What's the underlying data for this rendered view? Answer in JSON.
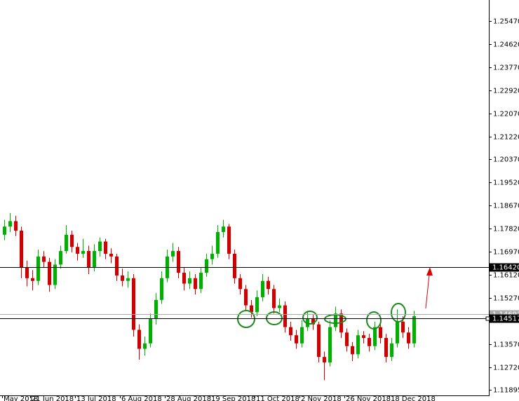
{
  "chart_data": {
    "type": "candlestick",
    "categories": [
      "May 2018",
      null,
      null,
      null,
      null,
      "21 Jun 2018",
      null,
      null,
      null,
      null,
      null,
      null,
      null,
      "13 Jul 2018",
      null,
      null,
      null,
      null,
      null,
      null,
      null,
      "6 Aug 2018",
      null,
      null,
      null,
      null,
      null,
      null,
      null,
      "28 Aug 2018",
      null,
      null,
      null,
      null,
      null,
      null,
      null,
      "19 Sep 2018",
      null,
      null,
      null,
      null,
      null,
      null,
      null,
      "11 Oct 2018",
      null,
      null,
      null,
      null,
      null,
      null,
      null,
      "2 Nov 2018",
      null,
      null,
      null,
      null,
      null,
      null,
      null,
      "26 Nov 2018",
      null,
      null,
      null,
      null,
      null,
      null,
      null,
      "18 Dec 2018",
      null,
      null,
      null,
      null
    ],
    "ohlc": [
      [
        1.176,
        1.1815,
        1.174,
        1.179
      ],
      [
        1.179,
        1.184,
        1.177,
        1.181
      ],
      [
        1.181,
        1.183,
        1.1755,
        1.1775
      ],
      [
        1.1775,
        1.179,
        1.16,
        1.164
      ],
      [
        1.164,
        1.1665,
        1.157,
        1.16
      ],
      [
        1.16,
        1.163,
        1.1555,
        1.159
      ],
      [
        1.159,
        1.1705,
        1.1575,
        1.168
      ],
      [
        1.168,
        1.17,
        1.164,
        1.166
      ],
      [
        1.166,
        1.1675,
        1.155,
        1.1575
      ],
      [
        1.1575,
        1.167,
        1.156,
        1.165
      ],
      [
        1.165,
        1.172,
        1.1635,
        1.17
      ],
      [
        1.17,
        1.1795,
        1.169,
        1.176
      ],
      [
        1.176,
        1.1775,
        1.1695,
        1.1715
      ],
      [
        1.1715,
        1.173,
        1.1665,
        1.169
      ],
      [
        1.169,
        1.1745,
        1.1675,
        1.17
      ],
      [
        1.17,
        1.172,
        1.1615,
        1.164
      ],
      [
        1.164,
        1.1725,
        1.1625,
        1.17
      ],
      [
        1.17,
        1.175,
        1.168,
        1.1735
      ],
      [
        1.1735,
        1.1745,
        1.167,
        1.169
      ],
      [
        1.169,
        1.171,
        1.1655,
        1.168
      ],
      [
        1.168,
        1.169,
        1.159,
        1.161
      ],
      [
        1.161,
        1.1635,
        1.157,
        1.159
      ],
      [
        1.159,
        1.1625,
        1.1565,
        1.16
      ],
      [
        1.16,
        1.1615,
        1.1385,
        1.141
      ],
      [
        1.141,
        1.143,
        1.13,
        1.134
      ],
      [
        1.134,
        1.1385,
        1.1315,
        1.136
      ],
      [
        1.136,
        1.147,
        1.1345,
        1.145
      ],
      [
        1.145,
        1.1545,
        1.143,
        1.152
      ],
      [
        1.152,
        1.1625,
        1.1505,
        1.16
      ],
      [
        1.16,
        1.1705,
        1.1585,
        1.168
      ],
      [
        1.168,
        1.173,
        1.166,
        1.17
      ],
      [
        1.17,
        1.1715,
        1.16,
        1.162
      ],
      [
        1.162,
        1.164,
        1.1555,
        1.158
      ],
      [
        1.158,
        1.1625,
        1.156,
        1.16
      ],
      [
        1.16,
        1.1615,
        1.154,
        1.156
      ],
      [
        1.156,
        1.164,
        1.1545,
        1.162
      ],
      [
        1.162,
        1.169,
        1.1605,
        1.167
      ],
      [
        1.167,
        1.172,
        1.165,
        1.169
      ],
      [
        1.169,
        1.1795,
        1.1675,
        1.177
      ],
      [
        1.177,
        1.1815,
        1.175,
        1.179
      ],
      [
        1.179,
        1.18,
        1.167,
        1.169
      ],
      [
        1.169,
        1.1705,
        1.158,
        1.16
      ],
      [
        1.16,
        1.1615,
        1.154,
        1.156
      ],
      [
        1.156,
        1.1575,
        1.148,
        1.15
      ],
      [
        1.15,
        1.152,
        1.1455,
        1.1475
      ],
      [
        1.1475,
        1.1555,
        1.146,
        1.153
      ],
      [
        1.153,
        1.1615,
        1.1515,
        1.159
      ],
      [
        1.159,
        1.1605,
        1.154,
        1.156
      ],
      [
        1.156,
        1.1575,
        1.147,
        1.149
      ],
      [
        1.149,
        1.1525,
        1.1475,
        1.15
      ],
      [
        1.15,
        1.1515,
        1.14,
        1.142
      ],
      [
        1.142,
        1.144,
        1.137,
        1.139
      ],
      [
        1.139,
        1.141,
        1.134,
        1.136
      ],
      [
        1.136,
        1.1445,
        1.1345,
        1.142
      ],
      [
        1.142,
        1.148,
        1.1405,
        1.145
      ],
      [
        1.145,
        1.1465,
        1.141,
        1.143
      ],
      [
        1.143,
        1.144,
        1.129,
        1.131
      ],
      [
        1.131,
        1.133,
        1.1225,
        1.129
      ],
      [
        1.129,
        1.1445,
        1.1275,
        1.142
      ],
      [
        1.142,
        1.1495,
        1.1405,
        1.147
      ],
      [
        1.147,
        1.1485,
        1.138,
        1.14
      ],
      [
        1.14,
        1.1415,
        1.133,
        1.135
      ],
      [
        1.135,
        1.1365,
        1.1295,
        1.132
      ],
      [
        1.132,
        1.141,
        1.1305,
        1.139
      ],
      [
        1.139,
        1.1405,
        1.136,
        1.138
      ],
      [
        1.138,
        1.1395,
        1.133,
        1.135
      ],
      [
        1.135,
        1.144,
        1.1335,
        1.142
      ],
      [
        1.142,
        1.1435,
        1.136,
        1.138
      ],
      [
        1.138,
        1.1395,
        1.129,
        1.131
      ],
      [
        1.131,
        1.138,
        1.1295,
        1.136
      ],
      [
        1.136,
        1.1485,
        1.1345,
        1.144
      ],
      [
        1.144,
        1.146,
        1.138,
        1.14
      ],
      [
        1.14,
        1.142,
        1.134,
        1.136
      ],
      [
        1.136,
        1.148,
        1.1345,
        1.146
      ]
    ],
    "up_color": "#00b000",
    "down_color": "#d00000",
    "ylim": [
      1.1166,
      1.2624
    ],
    "yticks": [
      {
        "value": 1.2547,
        "label": "1.25470"
      },
      {
        "value": 1.2462,
        "label": "1.24620"
      },
      {
        "value": 1.2377,
        "label": "1.23770"
      },
      {
        "value": 1.2292,
        "label": "1.22920"
      },
      {
        "value": 1.2207,
        "label": "1.22070"
      },
      {
        "value": 1.2122,
        "label": "1.21220"
      },
      {
        "value": 1.2037,
        "label": "1.20370"
      },
      {
        "value": 1.1952,
        "label": "1.19520"
      },
      {
        "value": 1.1867,
        "label": "1.18670"
      },
      {
        "value": 1.1782,
        "label": "1.17820"
      },
      {
        "value": 1.1697,
        "label": "1.16970"
      },
      {
        "value": 1.1612,
        "label": "1.16120"
      },
      {
        "value": 1.1527,
        "label": "1.15270"
      },
      {
        "value": 1.1357,
        "label": "1.13570"
      },
      {
        "value": 1.1272,
        "label": "1.12720"
      },
      {
        "value": 1.11895,
        "label": "1.11895"
      }
    ],
    "hlines": [
      {
        "value": 1.14691,
        "label": "1.14691",
        "color": "#aaaaaa"
      },
      {
        "value": 1.1642,
        "label": "1.16420",
        "color": "#000000"
      },
      {
        "value": 1.14517,
        "label": "1.14517",
        "color": "#000000"
      }
    ]
  }
}
